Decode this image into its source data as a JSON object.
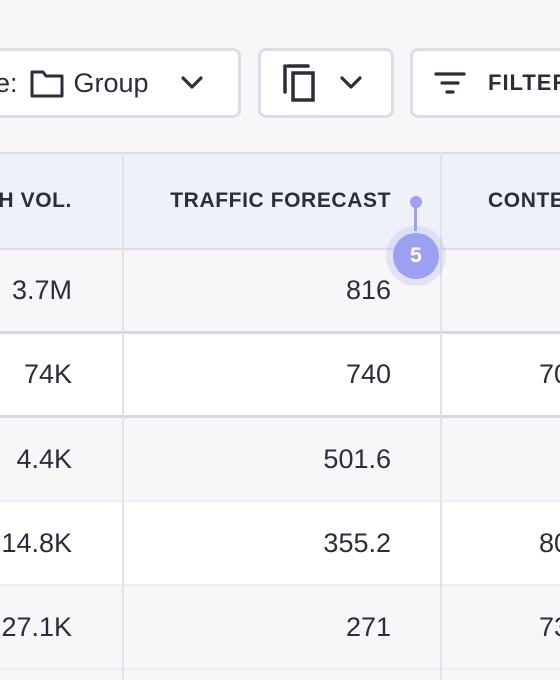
{
  "toolbar": {
    "group_prefix": "e:",
    "group_label": "Group",
    "filter_label": "FILTER"
  },
  "table": {
    "headers": {
      "volume": "H  VOL.",
      "traffic": "TRAFFIC FORECAST",
      "content": "CONTE"
    },
    "rows": [
      {
        "volume": "3.7M",
        "traffic": "816",
        "content": "",
        "bg": "#f7f7fa"
      },
      {
        "volume": "74K",
        "traffic": "740",
        "content": "70",
        "bg": "#ffffff"
      },
      {
        "volume": "4.4K",
        "traffic": "501.6",
        "content": "",
        "bg": "#f7f7fa"
      },
      {
        "volume": "14.8K",
        "traffic": "355.2",
        "content": "80",
        "bg": "#ffffff"
      },
      {
        "volume": "27.1K",
        "traffic": "271",
        "content": "73",
        "bg": "#f7f7fa"
      }
    ]
  },
  "badge": {
    "number": "5"
  },
  "colors": {
    "accent": "#9d9ff0",
    "header_bg": "#eff1f8",
    "border": "#dcdde6"
  }
}
